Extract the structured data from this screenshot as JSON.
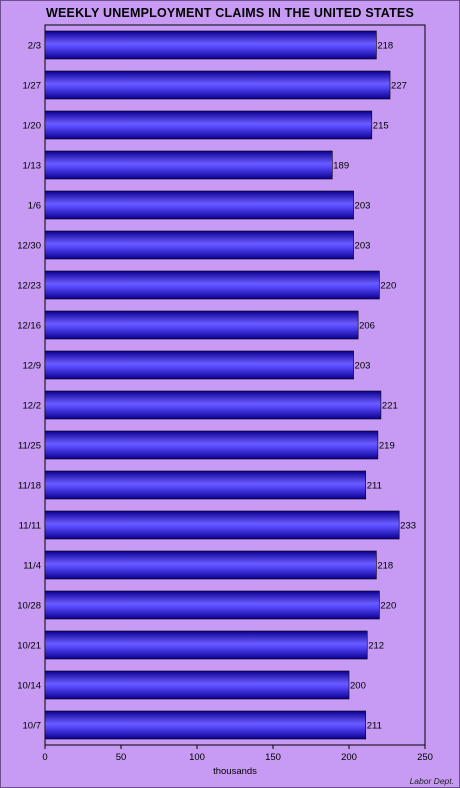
{
  "chart_data": {
    "type": "bar",
    "orientation": "horizontal",
    "title": "WEEKLY UNEMPLOYMENT CLAIMS IN THE UNITED STATES",
    "xlabel": "thousands",
    "source": "Labor Dept.",
    "xlim": [
      0,
      250
    ],
    "xticks": [
      0,
      50,
      100,
      150,
      200,
      250
    ],
    "categories": [
      "2/3",
      "1/27",
      "1/20",
      "1/13",
      "1/6",
      "12/30",
      "12/23",
      "12/16",
      "12/9",
      "12/2",
      "11/25",
      "11/18",
      "11/11",
      "11/4",
      "10/28",
      "10/21",
      "10/14",
      "10/7"
    ],
    "values": [
      218,
      227,
      215,
      189,
      203,
      203,
      220,
      206,
      203,
      221,
      219,
      211,
      233,
      218,
      220,
      212,
      200,
      211
    ],
    "bar_color": "#2a1cf0",
    "background_color": "#c79bf3",
    "grid": false
  }
}
